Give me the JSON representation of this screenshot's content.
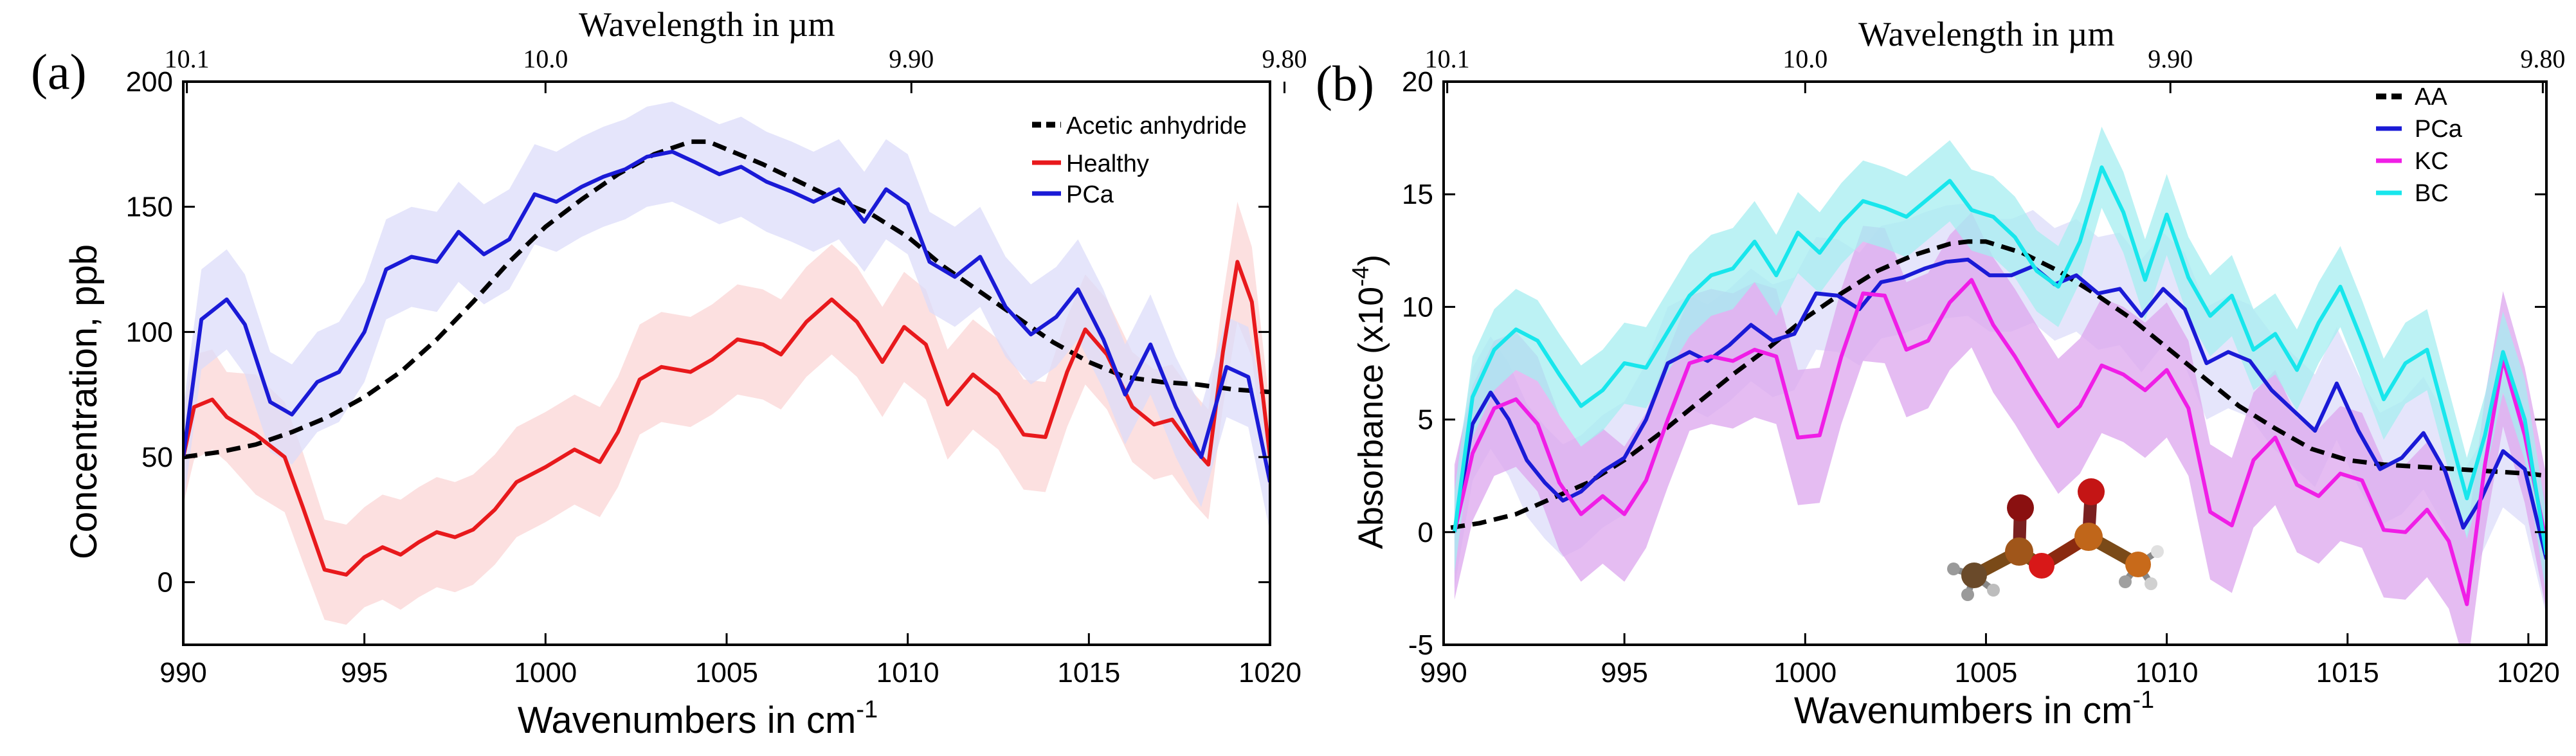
{
  "colors": {
    "aa": "#000000",
    "healthy": "#e8191c",
    "pca": "#1a1ad6",
    "kc": "#f01ee6",
    "bc": "#18e6ec",
    "healthy_band": "#fbd6d6",
    "pca_band": "#dcdcfa",
    "kc_band": "#dca6ee",
    "bc_band": "#a6eef0"
  },
  "chart_data": [
    {
      "panel_label": "(a)",
      "type": "line",
      "xlabel": "Wavenumbers in cm",
      "xlabel_sup": "-1",
      "ylabel": "Concentration, ppb",
      "top_label": "Wavelength in  µm",
      "xlim": [
        990,
        1020
      ],
      "ylim": [
        -25,
        200
      ],
      "x_ticks": [
        990,
        995,
        1000,
        1005,
        1010,
        1015,
        1020
      ],
      "x_tick_labels": [
        "990",
        "995",
        "1000",
        "1005",
        "1010",
        "1015",
        "1020"
      ],
      "y_ticks": [
        0,
        50,
        100,
        150,
        200
      ],
      "y_tick_labels": [
        "0",
        "50",
        "100",
        "150",
        "200"
      ],
      "top_ticks": [
        990.1,
        1000.0,
        1010.1,
        1020.4
      ],
      "top_tick_labels": [
        "10.1",
        "10.0",
        "9.90",
        "9.80"
      ],
      "legend_position": "top-right",
      "legend": [
        "Acetic anhydride",
        "Healthy",
        "PCa"
      ],
      "series": [
        {
          "name": "Acetic anhydride",
          "style": "dashed",
          "color_key": "aa",
          "x": [
            990,
            991,
            992,
            993,
            994,
            995,
            996,
            997,
            998,
            999,
            1000,
            1001,
            1002,
            1003,
            1004,
            1004.5,
            1005,
            1006,
            1007,
            1008,
            1009,
            1010,
            1011,
            1012,
            1013,
            1014,
            1015,
            1016,
            1017,
            1018,
            1019,
            1020
          ],
          "y": [
            50,
            52,
            55,
            60,
            66,
            74,
            84,
            97,
            112,
            128,
            142,
            153,
            163,
            171,
            176,
            176,
            173,
            167,
            160,
            153,
            147,
            138,
            126,
            116,
            106,
            96,
            88,
            82,
            80,
            79,
            77,
            76
          ]
        },
        {
          "name": "Healthy",
          "style": "solid",
          "color_key": "healthy",
          "band_key": "healthy_band",
          "x": [
            990,
            990.3,
            990.8,
            991.2,
            992,
            992.8,
            993.3,
            993.9,
            994.5,
            995,
            995.5,
            996,
            996.5,
            997,
            997.5,
            998,
            998.6,
            999.2,
            1000,
            1000.8,
            1001.5,
            1002,
            1002.6,
            1003.2,
            1004,
            1004.6,
            1005.3,
            1006,
            1006.5,
            1007.2,
            1007.9,
            1008.6,
            1009.3,
            1009.9,
            1010.5,
            1011.1,
            1011.8,
            1012.5,
            1013.2,
            1013.8,
            1014.4,
            1014.9,
            1015.5,
            1016.2,
            1016.8,
            1017.3,
            1017.8,
            1018.3,
            1018.7,
            1019.1,
            1019.5,
            1020
          ],
          "y": [
            50,
            70,
            73,
            66,
            59,
            50,
            30,
            5,
            3,
            10,
            14,
            11,
            16,
            20,
            18,
            21,
            29,
            40,
            46,
            53,
            48,
            60,
            81,
            86,
            84,
            89,
            97,
            95,
            91,
            104,
            113,
            104,
            88,
            102,
            95,
            71,
            83,
            75,
            59,
            58,
            84,
            101,
            91,
            70,
            63,
            65,
            55,
            47,
            92,
            128,
            112,
            50
          ],
          "band": [
            19,
            21,
            20,
            18,
            24,
            22,
            22,
            20,
            20,
            20,
            21,
            22,
            22,
            22,
            22,
            22,
            22,
            22,
            22,
            22,
            22,
            22,
            22,
            22,
            22,
            22,
            22,
            22,
            22,
            22,
            22,
            22,
            22,
            22,
            22,
            22,
            22,
            22,
            22,
            22,
            22,
            22,
            22,
            22,
            22,
            22,
            22,
            22,
            22,
            24,
            22,
            20
          ]
        },
        {
          "name": "PCa",
          "style": "solid",
          "color_key": "pca",
          "band_key": "pca_band",
          "x": [
            990,
            990.5,
            991.2,
            991.7,
            992.4,
            993,
            993.7,
            994.3,
            995,
            995.6,
            996.3,
            997,
            997.6,
            998.3,
            999,
            999.7,
            1000.3,
            1001,
            1001.6,
            1002.2,
            1002.8,
            1003.5,
            1004.1,
            1004.8,
            1005.4,
            1006.1,
            1006.8,
            1007.4,
            1008.1,
            1008.8,
            1009.4,
            1010,
            1010.6,
            1011.3,
            1012,
            1012.7,
            1013.4,
            1014.1,
            1014.7,
            1015.4,
            1016,
            1016.7,
            1017.4,
            1018.1,
            1018.8,
            1019.4,
            1020
          ],
          "y": [
            50,
            105,
            113,
            103,
            72,
            67,
            80,
            84,
            100,
            125,
            130,
            128,
            140,
            131,
            137,
            155,
            152,
            158,
            162,
            165,
            170,
            172,
            168,
            163,
            166,
            160,
            156,
            152,
            157,
            144,
            157,
            151,
            128,
            122,
            130,
            110,
            99,
            106,
            117,
            97,
            75,
            95,
            70,
            50,
            86,
            82,
            40
          ],
          "band": [
            20,
            20,
            20,
            20,
            20,
            20,
            20,
            20,
            20,
            20,
            20,
            20,
            20,
            20,
            20,
            20,
            20,
            20,
            20,
            20,
            20,
            20,
            20,
            20,
            20,
            20,
            20,
            20,
            20,
            20,
            20,
            20,
            20,
            20,
            20,
            20,
            20,
            20,
            20,
            20,
            20,
            20,
            20,
            20,
            20,
            20,
            20
          ]
        }
      ]
    },
    {
      "panel_label": "(b)",
      "type": "line",
      "xlabel": "Wavenumbers in cm",
      "xlabel_sup": "-1",
      "ylabel": "Absorbance (x10",
      "ylabel_sup": "-4",
      "ylabel_end": ")",
      "top_label": "Wavelength in  µm",
      "xlim": [
        990,
        1020.5
      ],
      "ylim": [
        -5,
        20
      ],
      "x_ticks": [
        990,
        995,
        1000,
        1005,
        1010,
        1015,
        1020
      ],
      "x_tick_labels": [
        "990",
        "995",
        "1000",
        "1005",
        "1010",
        "1015",
        "1020"
      ],
      "y_ticks": [
        -5,
        0,
        5,
        10,
        15,
        20
      ],
      "y_tick_labels": [
        "-5",
        "0",
        "5",
        "10",
        "15",
        "20"
      ],
      "top_ticks": [
        990.1,
        1000.0,
        1010.1,
        1020.4
      ],
      "top_tick_labels": [
        "10.1",
        "10.0",
        "9.90",
        "9.80"
      ],
      "legend_position": "top-right",
      "legend": [
        "AA",
        "PCa",
        "KC",
        "BC"
      ],
      "inset": "acetic-anhydride-molecule",
      "series": [
        {
          "name": "AA",
          "style": "dashed",
          "color_key": "aa",
          "x": [
            990.2,
            991,
            992,
            993,
            994,
            995,
            996,
            997,
            998,
            999,
            1000,
            1001,
            1002,
            1003,
            1004,
            1004.5,
            1005,
            1006,
            1007,
            1008,
            1009,
            1010,
            1011,
            1012,
            1013,
            1014,
            1015,
            1016,
            1017,
            1018,
            1019,
            1020,
            1020.5
          ],
          "y": [
            0.2,
            0.4,
            0.8,
            1.5,
            2.2,
            3.2,
            4.4,
            5.7,
            7.0,
            8.2,
            9.5,
            10.6,
            11.6,
            12.3,
            12.8,
            12.9,
            12.9,
            12.4,
            11.6,
            10.6,
            9.5,
            8.2,
            6.9,
            5.6,
            4.6,
            3.7,
            3.2,
            3.0,
            2.9,
            2.8,
            2.7,
            2.6,
            2.5
          ]
        },
        {
          "name": "PCa",
          "style": "solid",
          "color_key": "pca",
          "band_key": "pca_band",
          "x": [
            990.3,
            990.8,
            991.3,
            991.8,
            992.3,
            992.8,
            993.3,
            993.8,
            994.4,
            995,
            995.6,
            996.2,
            996.8,
            997.3,
            997.9,
            998.5,
            999.1,
            999.7,
            1000.3,
            1000.9,
            1001.5,
            1002.1,
            1002.7,
            1003.3,
            1003.9,
            1004.5,
            1005.1,
            1005.7,
            1006.3,
            1006.9,
            1007.5,
            1008.1,
            1008.7,
            1009.3,
            1009.9,
            1010.5,
            1011.1,
            1011.7,
            1012.3,
            1012.9,
            1013.5,
            1014.1,
            1014.7,
            1015.3,
            1015.9,
            1016.5,
            1017.1,
            1017.7,
            1018.2,
            1018.7,
            1019.3,
            1019.9,
            1020.5
          ],
          "y": [
            0,
            4.8,
            6.2,
            5.0,
            3.2,
            2.2,
            1.4,
            1.8,
            2.7,
            3.3,
            5.0,
            7.5,
            8.0,
            7.6,
            8.3,
            9.2,
            8.5,
            8.8,
            10.6,
            10.5,
            9.9,
            11.1,
            11.3,
            11.7,
            12.0,
            12.1,
            11.4,
            11.4,
            11.8,
            11.0,
            11.4,
            10.6,
            10.8,
            9.6,
            10.8,
            9.9,
            7.5,
            8.0,
            7.6,
            6.3,
            5.4,
            4.5,
            6.6,
            4.5,
            2.8,
            3.3,
            4.4,
            2.7,
            0.2,
            1.5,
            3.6,
            2.8,
            -1.2
          ],
          "band": [
            2.5,
            2.5,
            2.5,
            2.5,
            2.5,
            2.5,
            2.5,
            2.5,
            2.5,
            2.5,
            2.5,
            2.5,
            2.5,
            2.5,
            2.5,
            2.5,
            2.5,
            2.5,
            2.5,
            2.5,
            2.5,
            2.5,
            2.5,
            2.5,
            2.5,
            2.5,
            2.5,
            2.5,
            2.5,
            2.5,
            2.5,
            2.5,
            2.5,
            2.5,
            2.5,
            2.5,
            2.5,
            2.5,
            2.5,
            2.5,
            2.5,
            2.5,
            2.5,
            2.5,
            2.5,
            2.5,
            2.5,
            2.5,
            2.5,
            2.5,
            2.5,
            2.5,
            2.5
          ]
        },
        {
          "name": "KC",
          "style": "solid",
          "color_key": "kc",
          "band_key": "kc_band",
          "x": [
            990.3,
            990.8,
            991.4,
            992,
            992.6,
            993.2,
            993.8,
            994.4,
            995,
            995.6,
            996.2,
            996.8,
            997.4,
            998,
            998.6,
            999.2,
            999.8,
            1000.4,
            1001,
            1001.6,
            1002.2,
            1002.8,
            1003.4,
            1004,
            1004.6,
            1005.2,
            1005.8,
            1006.4,
            1007,
            1007.6,
            1008.2,
            1008.8,
            1009.4,
            1010,
            1010.6,
            1011.2,
            1011.8,
            1012.4,
            1013,
            1013.6,
            1014.2,
            1014.8,
            1015.4,
            1016,
            1016.6,
            1017.2,
            1017.8,
            1018.3,
            1018.8,
            1019.3,
            1019.9,
            1020.5
          ],
          "y": [
            0,
            3.5,
            5.5,
            5.9,
            4.8,
            2.2,
            0.8,
            1.6,
            0.8,
            2.3,
            5.0,
            7.5,
            7.8,
            7.6,
            8.1,
            7.8,
            4.2,
            4.3,
            7.8,
            10.6,
            10.5,
            8.1,
            8.5,
            10.2,
            11.2,
            9.2,
            7.8,
            6.2,
            4.7,
            5.6,
            7.4,
            7.0,
            6.3,
            7.2,
            5.5,
            0.9,
            0.3,
            3.2,
            4.2,
            2.1,
            1.6,
            2.6,
            2.3,
            0.1,
            0.0,
            1.0,
            -0.4,
            -3.2,
            3.0,
            7.7,
            4.3,
            -0.5
          ],
          "band": [
            3.0,
            3.0,
            3.0,
            3.0,
            3.0,
            3.0,
            3.0,
            3.0,
            3.0,
            3.0,
            3.0,
            3.0,
            3.0,
            3.0,
            3.0,
            3.0,
            3.0,
            3.0,
            3.0,
            3.0,
            3.0,
            3.0,
            3.0,
            3.0,
            3.0,
            3.0,
            3.0,
            3.0,
            3.0,
            3.0,
            3.0,
            3.0,
            3.0,
            3.0,
            3.0,
            3.0,
            3.0,
            3.0,
            3.0,
            3.0,
            3.0,
            3.0,
            3.0,
            3.0,
            3.0,
            3.0,
            3.0,
            3.0,
            3.0,
            3.0,
            3.0,
            3.0
          ]
        },
        {
          "name": "BC",
          "style": "solid",
          "color_key": "bc",
          "band_key": "bc_band",
          "x": [
            990.3,
            990.8,
            991.4,
            992,
            992.6,
            993.2,
            993.8,
            994.4,
            995,
            995.6,
            996.2,
            996.8,
            997.4,
            998,
            998.6,
            999.2,
            999.8,
            1000.4,
            1001,
            1001.6,
            1002.2,
            1002.8,
            1003.4,
            1004,
            1004.6,
            1005.2,
            1005.8,
            1006.4,
            1007,
            1007.6,
            1008.2,
            1008.8,
            1009.4,
            1010,
            1010.6,
            1011.2,
            1011.8,
            1012.4,
            1013,
            1013.6,
            1014.2,
            1014.8,
            1015.4,
            1016,
            1016.6,
            1017.2,
            1017.8,
            1018.3,
            1018.8,
            1019.3,
            1019.9,
            1020.5
          ],
          "y": [
            0,
            6.0,
            8.1,
            9.0,
            8.5,
            7.0,
            5.6,
            6.3,
            7.5,
            7.3,
            8.9,
            10.5,
            11.4,
            11.7,
            12.9,
            11.4,
            13.3,
            12.4,
            13.7,
            14.7,
            14.4,
            14.0,
            14.8,
            15.6,
            14.3,
            14.0,
            13.1,
            11.6,
            10.9,
            12.9,
            16.2,
            14.2,
            11.2,
            14.1,
            11.3,
            9.6,
            10.5,
            8.1,
            8.8,
            7.2,
            9.3,
            10.9,
            8.5,
            5.9,
            7.5,
            8.1,
            4.5,
            1.5,
            4.3,
            8.0,
            5.0,
            -1.0
          ],
          "band": [
            1.8,
            1.8,
            1.8,
            1.8,
            1.8,
            1.8,
            1.8,
            1.8,
            1.8,
            1.8,
            1.8,
            1.8,
            1.8,
            1.8,
            1.8,
            1.8,
            1.8,
            1.8,
            1.8,
            1.8,
            1.8,
            1.8,
            1.8,
            1.8,
            1.8,
            1.8,
            1.8,
            1.8,
            1.8,
            1.8,
            1.8,
            1.8,
            1.8,
            1.8,
            1.8,
            1.8,
            1.8,
            1.8,
            1.8,
            1.8,
            1.8,
            1.8,
            1.8,
            1.8,
            1.8,
            1.8,
            1.8,
            1.8,
            1.8,
            1.8,
            1.8,
            1.8
          ]
        }
      ]
    }
  ]
}
